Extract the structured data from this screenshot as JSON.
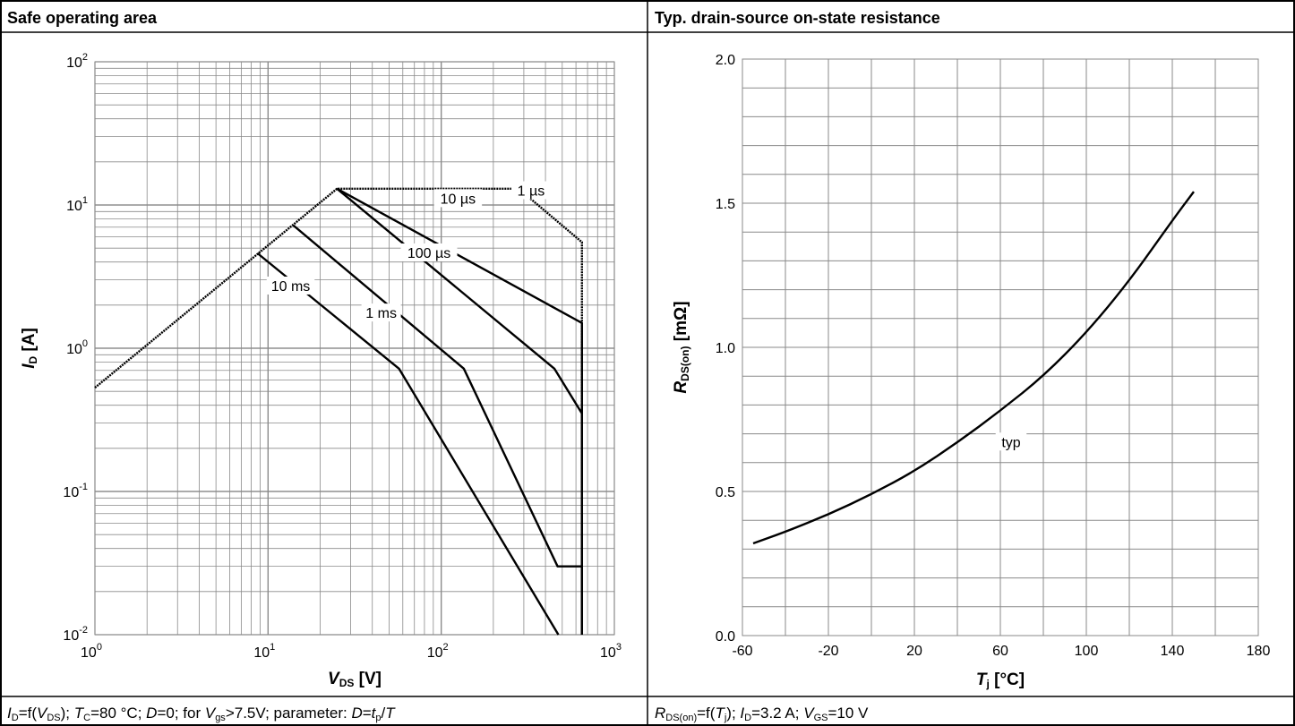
{
  "panels": [
    {
      "header": "Safe operating area",
      "caption_parts": [
        {
          "t": "I",
          "i": true
        },
        {
          "t": "D",
          "sub": true
        },
        {
          "t": "=f("
        },
        {
          "t": "V",
          "i": true
        },
        {
          "t": "DS",
          "sub": true
        },
        {
          "t": "); "
        },
        {
          "t": "T",
          "i": true
        },
        {
          "t": "C",
          "sub": true
        },
        {
          "t": "=80 °C; "
        },
        {
          "t": "D",
          "i": true
        },
        {
          "t": "=0; for "
        },
        {
          "t": "V",
          "i": true
        },
        {
          "t": "gs",
          "sub": true
        },
        {
          "t": ">7.5V; parameter: "
        },
        {
          "t": "D",
          "i": true
        },
        {
          "t": "="
        },
        {
          "t": "t",
          "i": true
        },
        {
          "t": "p",
          "sub": true
        },
        {
          "t": "/"
        },
        {
          "t": "T",
          "i": true
        }
      ]
    },
    {
      "header": "Typ. drain-source on-state resistance",
      "caption_parts": [
        {
          "t": "R",
          "i": true
        },
        {
          "t": "DS(on)",
          "sub": true
        },
        {
          "t": "=f("
        },
        {
          "t": "T",
          "i": true
        },
        {
          "t": "j",
          "sub": true
        },
        {
          "t": "); "
        },
        {
          "t": "I",
          "i": true
        },
        {
          "t": "D",
          "sub": true
        },
        {
          "t": "=3.2 A; "
        },
        {
          "t": "V",
          "i": true
        },
        {
          "t": "GS",
          "sub": true
        },
        {
          "t": "=10 V"
        }
      ]
    }
  ],
  "chart_data": [
    {
      "type": "line",
      "title": "Safe operating area",
      "x_scale": "log",
      "y_scale": "log",
      "xlim": [
        1,
        1000
      ],
      "ylim": [
        0.01,
        100
      ],
      "x_ticks": [
        {
          "base": "10",
          "exp": "0"
        },
        {
          "base": "10",
          "exp": "1"
        },
        {
          "base": "10",
          "exp": "2"
        },
        {
          "base": "10",
          "exp": "3"
        }
      ],
      "y_ticks": [
        {
          "base": "10",
          "exp": "-2"
        },
        {
          "base": "10",
          "exp": "-1"
        },
        {
          "base": "10",
          "exp": "0"
        },
        {
          "base": "10",
          "exp": "1"
        },
        {
          "base": "10",
          "exp": "2"
        }
      ],
      "xlabel": {
        "main": "V",
        "sub": "DS",
        "unit": " [V]"
      },
      "ylabel": {
        "main": "I",
        "sub": "D",
        "unit": " [A]"
      },
      "grid": true,
      "series": [
        {
          "name": "1 µs",
          "dashed": true,
          "x": [
            1,
            25,
            280,
            650,
            650
          ],
          "y": [
            0.53,
            13,
            13,
            5.5,
            0.01
          ]
        },
        {
          "name": "10 µs",
          "x": [
            25,
            650,
            650
          ],
          "y": [
            13,
            1.5,
            0.01
          ]
        },
        {
          "name": "100 µs",
          "x": [
            25,
            450,
            650,
            650
          ],
          "y": [
            13,
            0.72,
            0.35,
            0.01
          ]
        },
        {
          "name": "1 ms",
          "x": [
            14,
            135,
            470,
            650,
            650
          ],
          "y": [
            7.2,
            0.72,
            0.03,
            0.03,
            0.01
          ]
        },
        {
          "name": "10 ms",
          "x": [
            8.7,
            57,
            475
          ],
          "y": [
            4.6,
            0.72,
            0.01
          ]
        }
      ],
      "labels": [
        {
          "text": "1 µs",
          "x": 330,
          "y": 12.5
        },
        {
          "text": "10 µs",
          "x": 125,
          "y": 11
        },
        {
          "text": "100 µs",
          "x": 85,
          "y": 4.6
        },
        {
          "text": "1 ms",
          "x": 45,
          "y": 1.75
        },
        {
          "text": "10 ms",
          "x": 13.5,
          "y": 2.7
        }
      ]
    },
    {
      "type": "line",
      "title": "Typ. drain-source on-state resistance",
      "xlim": [
        -60,
        180
      ],
      "ylim": [
        0,
        2.0
      ],
      "x_ticks": [
        "-60",
        "-20",
        "20",
        "60",
        "100",
        "140",
        "180"
      ],
      "y_ticks": [
        "0.0",
        "0.5",
        "1.0",
        "1.5",
        "2.0"
      ],
      "xlabel": {
        "main": "T",
        "sub": "j",
        "unit": " [°C]"
      },
      "ylabel": {
        "main": "R",
        "sub": "DS(on)",
        "unit": " [mΩ]"
      },
      "grid": true,
      "series": [
        {
          "name": "typ",
          "x": [
            -55,
            -40,
            -20,
            0,
            20,
            40,
            60,
            80,
            100,
            120,
            140,
            150
          ],
          "y": [
            0.32,
            0.36,
            0.42,
            0.49,
            0.57,
            0.67,
            0.78,
            0.9,
            1.05,
            1.23,
            1.44,
            1.54
          ]
        }
      ],
      "labels": [
        {
          "text": "typ",
          "x": 65,
          "y": 0.67
        }
      ]
    }
  ]
}
